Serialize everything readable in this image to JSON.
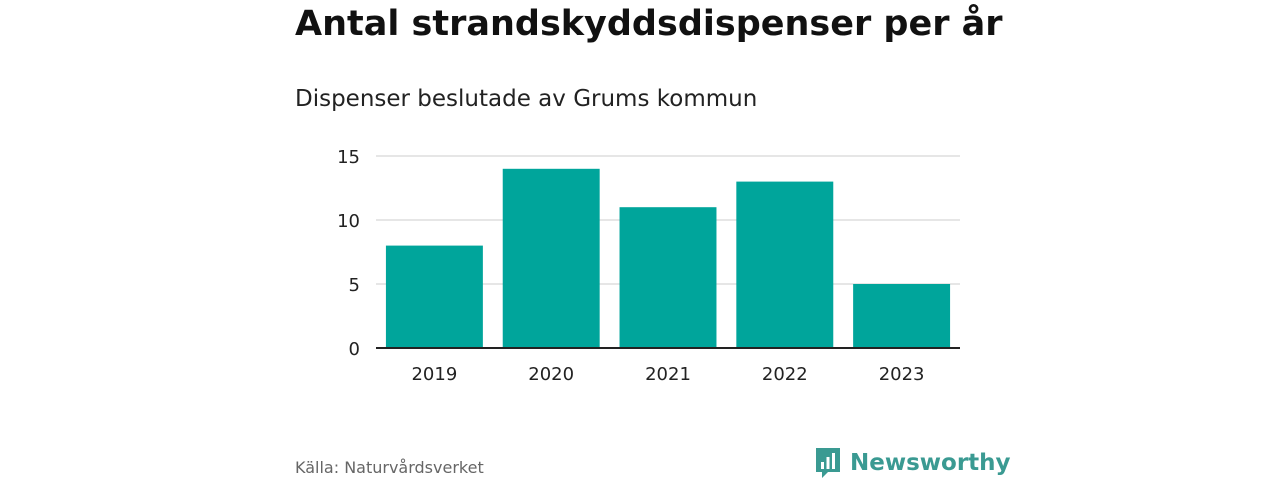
{
  "header": {
    "title": "Antal strandskyddsdispenser per år",
    "subtitle": "Dispenser beslutade av Grums kommun"
  },
  "footer": {
    "source": "Källa: Naturvårdsverket",
    "brand": "Newsworthy",
    "brand_icon": "bar-chart-speech-bubble-icon"
  },
  "colors": {
    "bar": "#00a59b",
    "grid": "#dddddd",
    "axis": "#222222",
    "brand": "#3a9a92"
  },
  "chart_data": {
    "type": "bar",
    "title": "Antal strandskyddsdispenser per år",
    "subtitle": "Dispenser beslutade av Grums kommun",
    "categories": [
      "2019",
      "2020",
      "2021",
      "2022",
      "2023"
    ],
    "values": [
      8,
      14,
      11,
      13,
      5
    ],
    "xlabel": "",
    "ylabel": "",
    "ylim": [
      0,
      15
    ],
    "yticks": [
      0,
      5,
      10,
      15
    ],
    "grid": true,
    "legend": "none"
  }
}
